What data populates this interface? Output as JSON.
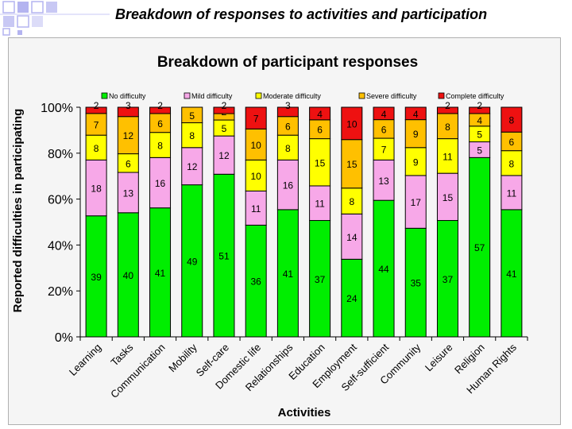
{
  "slide": {
    "title": "Breakdown of responses to activities and participation"
  },
  "chart_data": {
    "type": "bar",
    "stacked": true,
    "percent_scale": true,
    "title": "Breakdown of participant responses",
    "xlabel": "Activities",
    "ylabel": "Reported difficulties in participating",
    "ylim": [
      0,
      100
    ],
    "yticks": [
      "0%",
      "20%",
      "40%",
      "60%",
      "80%",
      "100%"
    ],
    "legend_position": "top",
    "categories": [
      "Learning",
      "Tasks",
      "Communication",
      "Mobility",
      "Self-care",
      "Domestic life",
      "Relationships",
      "Education",
      "Employment",
      "Self-sufficient",
      "Community",
      "Leisure",
      "Religion",
      "Human Rights"
    ],
    "series": [
      {
        "name": "No difficulty",
        "color": "#00ee00",
        "values": [
          39,
          40,
          41,
          49,
          51,
          36,
          41,
          37,
          24,
          44,
          35,
          37,
          57,
          41
        ]
      },
      {
        "name": "Mild difficulty",
        "color": "#f7a8e8",
        "values": [
          18,
          13,
          16,
          12,
          12,
          11,
          16,
          11,
          14,
          13,
          17,
          15,
          5,
          11
        ]
      },
      {
        "name": "Moderate difficulty",
        "color": "#ffff00",
        "values": [
          8,
          6,
          8,
          8,
          5,
          10,
          8,
          15,
          8,
          7,
          9,
          11,
          5,
          8
        ]
      },
      {
        "name": "Severe difficulty",
        "color": "#ffc000",
        "values": [
          7,
          12,
          6,
          5,
          2,
          10,
          6,
          6,
          15,
          6,
          9,
          8,
          4,
          6
        ]
      },
      {
        "name": "Complete difficulty",
        "color": "#ee1111",
        "values": [
          2,
          3,
          2,
          0,
          2,
          7,
          3,
          4,
          10,
          4,
          4,
          2,
          2,
          8
        ]
      }
    ]
  }
}
